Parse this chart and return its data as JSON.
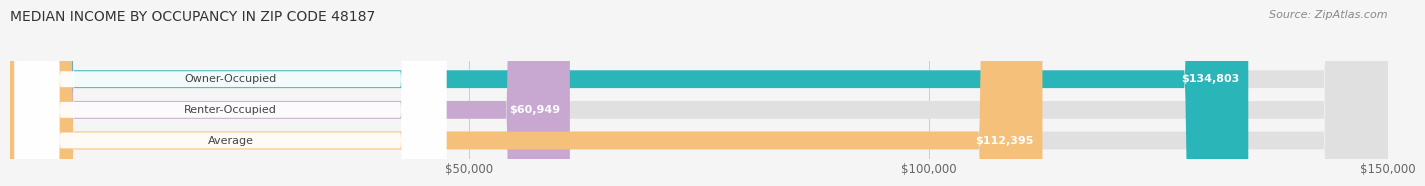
{
  "title": "MEDIAN INCOME BY OCCUPANCY IN ZIP CODE 48187",
  "source": "Source: ZipAtlas.com",
  "categories": [
    "Owner-Occupied",
    "Renter-Occupied",
    "Average"
  ],
  "values": [
    134803,
    60949,
    112395
  ],
  "bar_colors": [
    "#2ab5b8",
    "#c8a8d0",
    "#f5c07a"
  ],
  "bar_labels": [
    "$134,803",
    "$60,949",
    "$112,395"
  ],
  "xlim": [
    0,
    150000
  ],
  "xticks": [
    50000,
    100000,
    150000
  ],
  "xticklabels": [
    "$50,000",
    "$100,000",
    "$150,000"
  ],
  "background_color": "#f5f5f5",
  "bar_background_color": "#e0e0e0",
  "title_fontsize": 10,
  "source_fontsize": 8,
  "bar_height": 0.58,
  "label_fontsize": 8,
  "category_fontsize": 8
}
